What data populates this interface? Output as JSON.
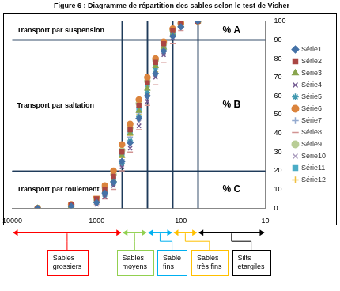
{
  "chart_data": {
    "type": "scatter",
    "title": "Figure 6 : Diagramme de répartition des sables selon le test de Visher",
    "log": "x",
    "grid": false,
    "legend": "right",
    "xlim": [
      10000,
      10
    ],
    "xticks": [
      10000,
      1000,
      100,
      10
    ],
    "ylim": [
      0,
      100
    ],
    "yticks": [
      0,
      10,
      20,
      30,
      40,
      50,
      60,
      70,
      80,
      90,
      100
    ],
    "x": [
      5000,
      2000,
      1000,
      800,
      630,
      500,
      400,
      315,
      250,
      200,
      160,
      125,
      100,
      63
    ],
    "series": [
      {
        "name": "Série1",
        "color": "#4572a7",
        "marker": "diamond",
        "values": [
          0,
          1,
          3,
          8,
          14,
          25,
          35,
          48,
          60,
          72,
          84,
          92,
          97,
          100
        ]
      },
      {
        "name": "Série2",
        "color": "#aa4643",
        "marker": "square",
        "values": [
          0,
          2,
          5,
          10,
          17,
          30,
          42,
          55,
          67,
          78,
          88,
          95,
          99,
          100
        ]
      },
      {
        "name": "Série3",
        "color": "#89a54e",
        "marker": "triangle",
        "values": [
          0,
          1,
          4,
          9,
          15,
          28,
          40,
          52,
          64,
          76,
          86,
          93,
          98,
          100
        ]
      },
      {
        "name": "Série4",
        "color": "#71588f",
        "marker": "x",
        "values": [
          0,
          0,
          2,
          6,
          12,
          22,
          32,
          44,
          57,
          70,
          82,
          91,
          97,
          100
        ]
      },
      {
        "name": "Série5",
        "color": "#4198af",
        "marker": "star",
        "values": [
          0,
          1,
          3,
          7,
          13,
          24,
          36,
          49,
          62,
          74,
          85,
          93,
          98,
          100
        ]
      },
      {
        "name": "Série6",
        "color": "#db843d",
        "marker": "circle",
        "values": [
          0,
          2,
          6,
          12,
          20,
          34,
          45,
          58,
          70,
          80,
          89,
          96,
          99,
          100
        ]
      },
      {
        "name": "Série7",
        "color": "#93a9cf",
        "marker": "plus",
        "values": [
          0,
          1,
          4,
          8,
          14,
          26,
          38,
          51,
          63,
          75,
          86,
          94,
          98,
          100
        ]
      },
      {
        "name": "Série8",
        "color": "#d19392",
        "marker": "dash",
        "values": [
          0,
          0,
          2,
          5,
          10,
          20,
          30,
          42,
          55,
          66,
          78,
          88,
          95,
          99
        ]
      },
      {
        "name": "Série9",
        "color": "#b9cd96",
        "marker": "circle",
        "values": [
          0,
          1,
          5,
          11,
          18,
          31,
          43,
          56,
          68,
          79,
          88,
          95,
          99,
          100
        ]
      },
      {
        "name": "Série10",
        "color": "#a99bbd",
        "marker": "x",
        "values": [
          0,
          1,
          3,
          7,
          12,
          23,
          34,
          46,
          59,
          71,
          83,
          92,
          97,
          100
        ]
      },
      {
        "name": "Série11",
        "color": "#4bacc6",
        "marker": "square",
        "values": [
          0,
          2,
          5,
          10,
          16,
          29,
          41,
          53,
          66,
          77,
          87,
          94,
          98,
          100
        ]
      },
      {
        "name": "Série12",
        "color": "#f0c040",
        "marker": "plus",
        "values": [
          0,
          1,
          4,
          9,
          15,
          27,
          39,
          50,
          61,
          73,
          84,
          92,
          97,
          100
        ]
      }
    ],
    "zones": [
      {
        "text": "Transport par suspension",
        "percent_label": "% A",
        "ymin": 90,
        "ymax": 100
      },
      {
        "text": "Transport par saltation",
        "percent_label": "% B",
        "ymin": 20,
        "ymax": 90
      },
      {
        "text": "Transport par roulement",
        "percent_label": "% C",
        "ymin": 0,
        "ymax": 20
      }
    ],
    "size_classes": [
      {
        "label": "Sables grossiers",
        "color": "#ff0000",
        "xmin": 500,
        "xmax": 10000
      },
      {
        "label": "Sables moyens",
        "color": "#92d050",
        "xmin": 250,
        "xmax": 500
      },
      {
        "label": "Sable fins",
        "color": "#00b0f0",
        "xmin": 125,
        "xmax": 250
      },
      {
        "label": "Sables très fins",
        "color": "#ffc000",
        "xmin": 63,
        "xmax": 125
      },
      {
        "label": "Silts etargiles",
        "color": "#000000",
        "xmin": 10,
        "xmax": 63
      }
    ]
  }
}
